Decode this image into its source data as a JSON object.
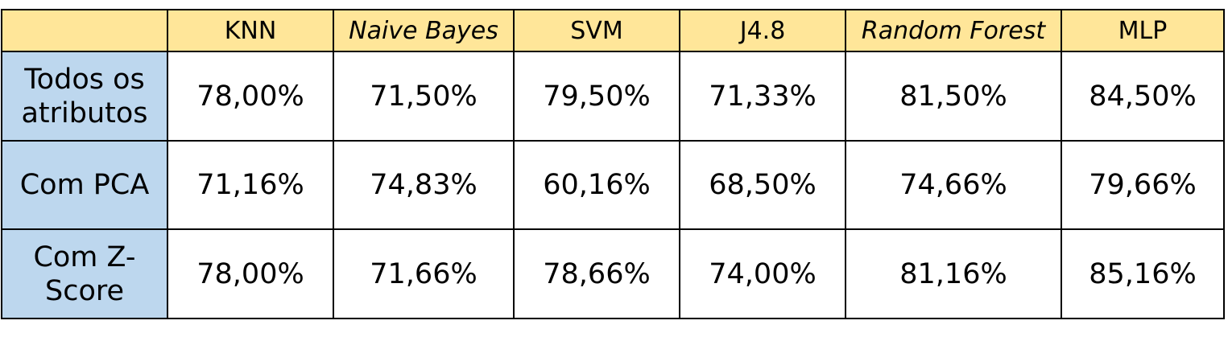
{
  "chart_data": {
    "type": "table",
    "columns": [
      "",
      "KNN",
      "Naive Bayes",
      "SVM",
      "J4.8",
      "Random Forest",
      "MLP"
    ],
    "italic_columns": [
      "Naive Bayes",
      "Random Forest"
    ],
    "rows": [
      {
        "label": "Todos os atributos",
        "values": [
          "78,00%",
          "71,50%",
          "79,50%",
          "71,33%",
          "81,50%",
          "84,50%"
        ]
      },
      {
        "label": "Com PCA",
        "values": [
          "71,16%",
          "74,83%",
          "60,16%",
          "68,50%",
          "74,66%",
          "79,66%"
        ]
      },
      {
        "label": "Com Z-Score",
        "values": [
          "78,00%",
          "71,66%",
          "78,66%",
          "74,00%",
          "81,16%",
          "85,16%"
        ]
      }
    ],
    "colors": {
      "header_fill": "#ffe699",
      "row_header_fill": "#bdd7ee",
      "cell_fill": "#ffffff",
      "border": "#000000"
    }
  }
}
